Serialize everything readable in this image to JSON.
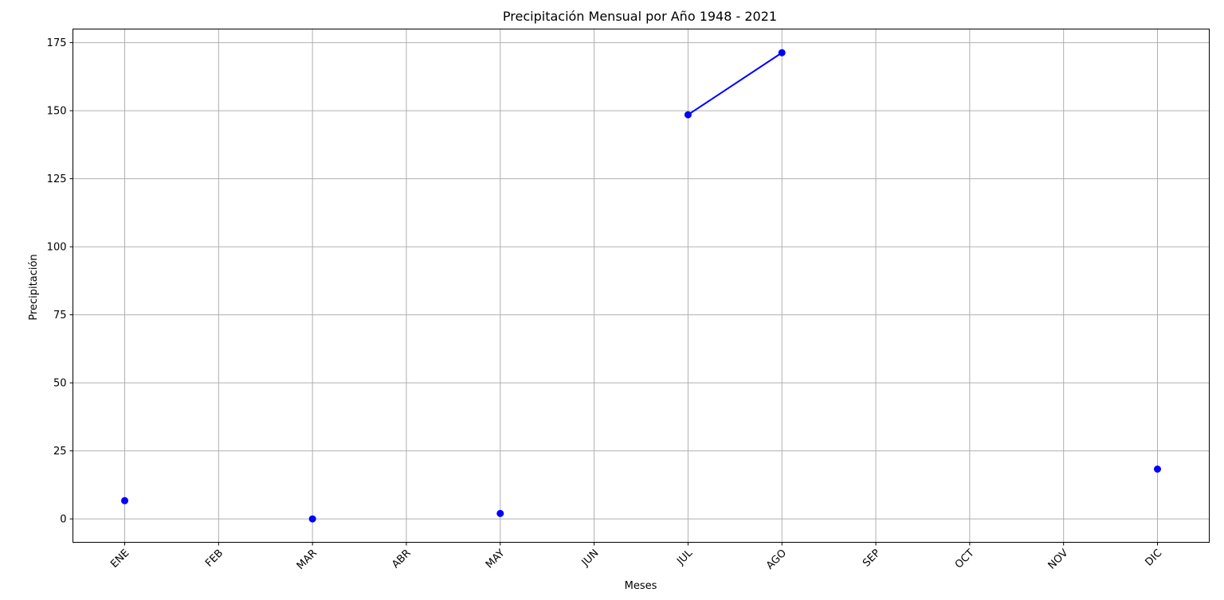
{
  "chart_data": {
    "type": "line",
    "title": "Precipitación Mensual por Año 1948 - 2021",
    "xlabel": "Meses",
    "ylabel": "Precipitación",
    "categories": [
      "ENE",
      "FEB",
      "MAR",
      "ABR",
      "MAY",
      "JUN",
      "JUL",
      "AGO",
      "SEP",
      "OCT",
      "NOV",
      "DIC"
    ],
    "series": [
      {
        "values": [
          6.7,
          null,
          0.0,
          null,
          2.0,
          null,
          148.5,
          171.3,
          null,
          null,
          null,
          18.3
        ],
        "color": "#0000ff",
        "marker": "circle"
      }
    ],
    "yticks": [
      0,
      25,
      50,
      75,
      100,
      125,
      150,
      175
    ],
    "ylim": [
      -8.6,
      180
    ],
    "grid": true,
    "xtick_rotation": 45
  }
}
